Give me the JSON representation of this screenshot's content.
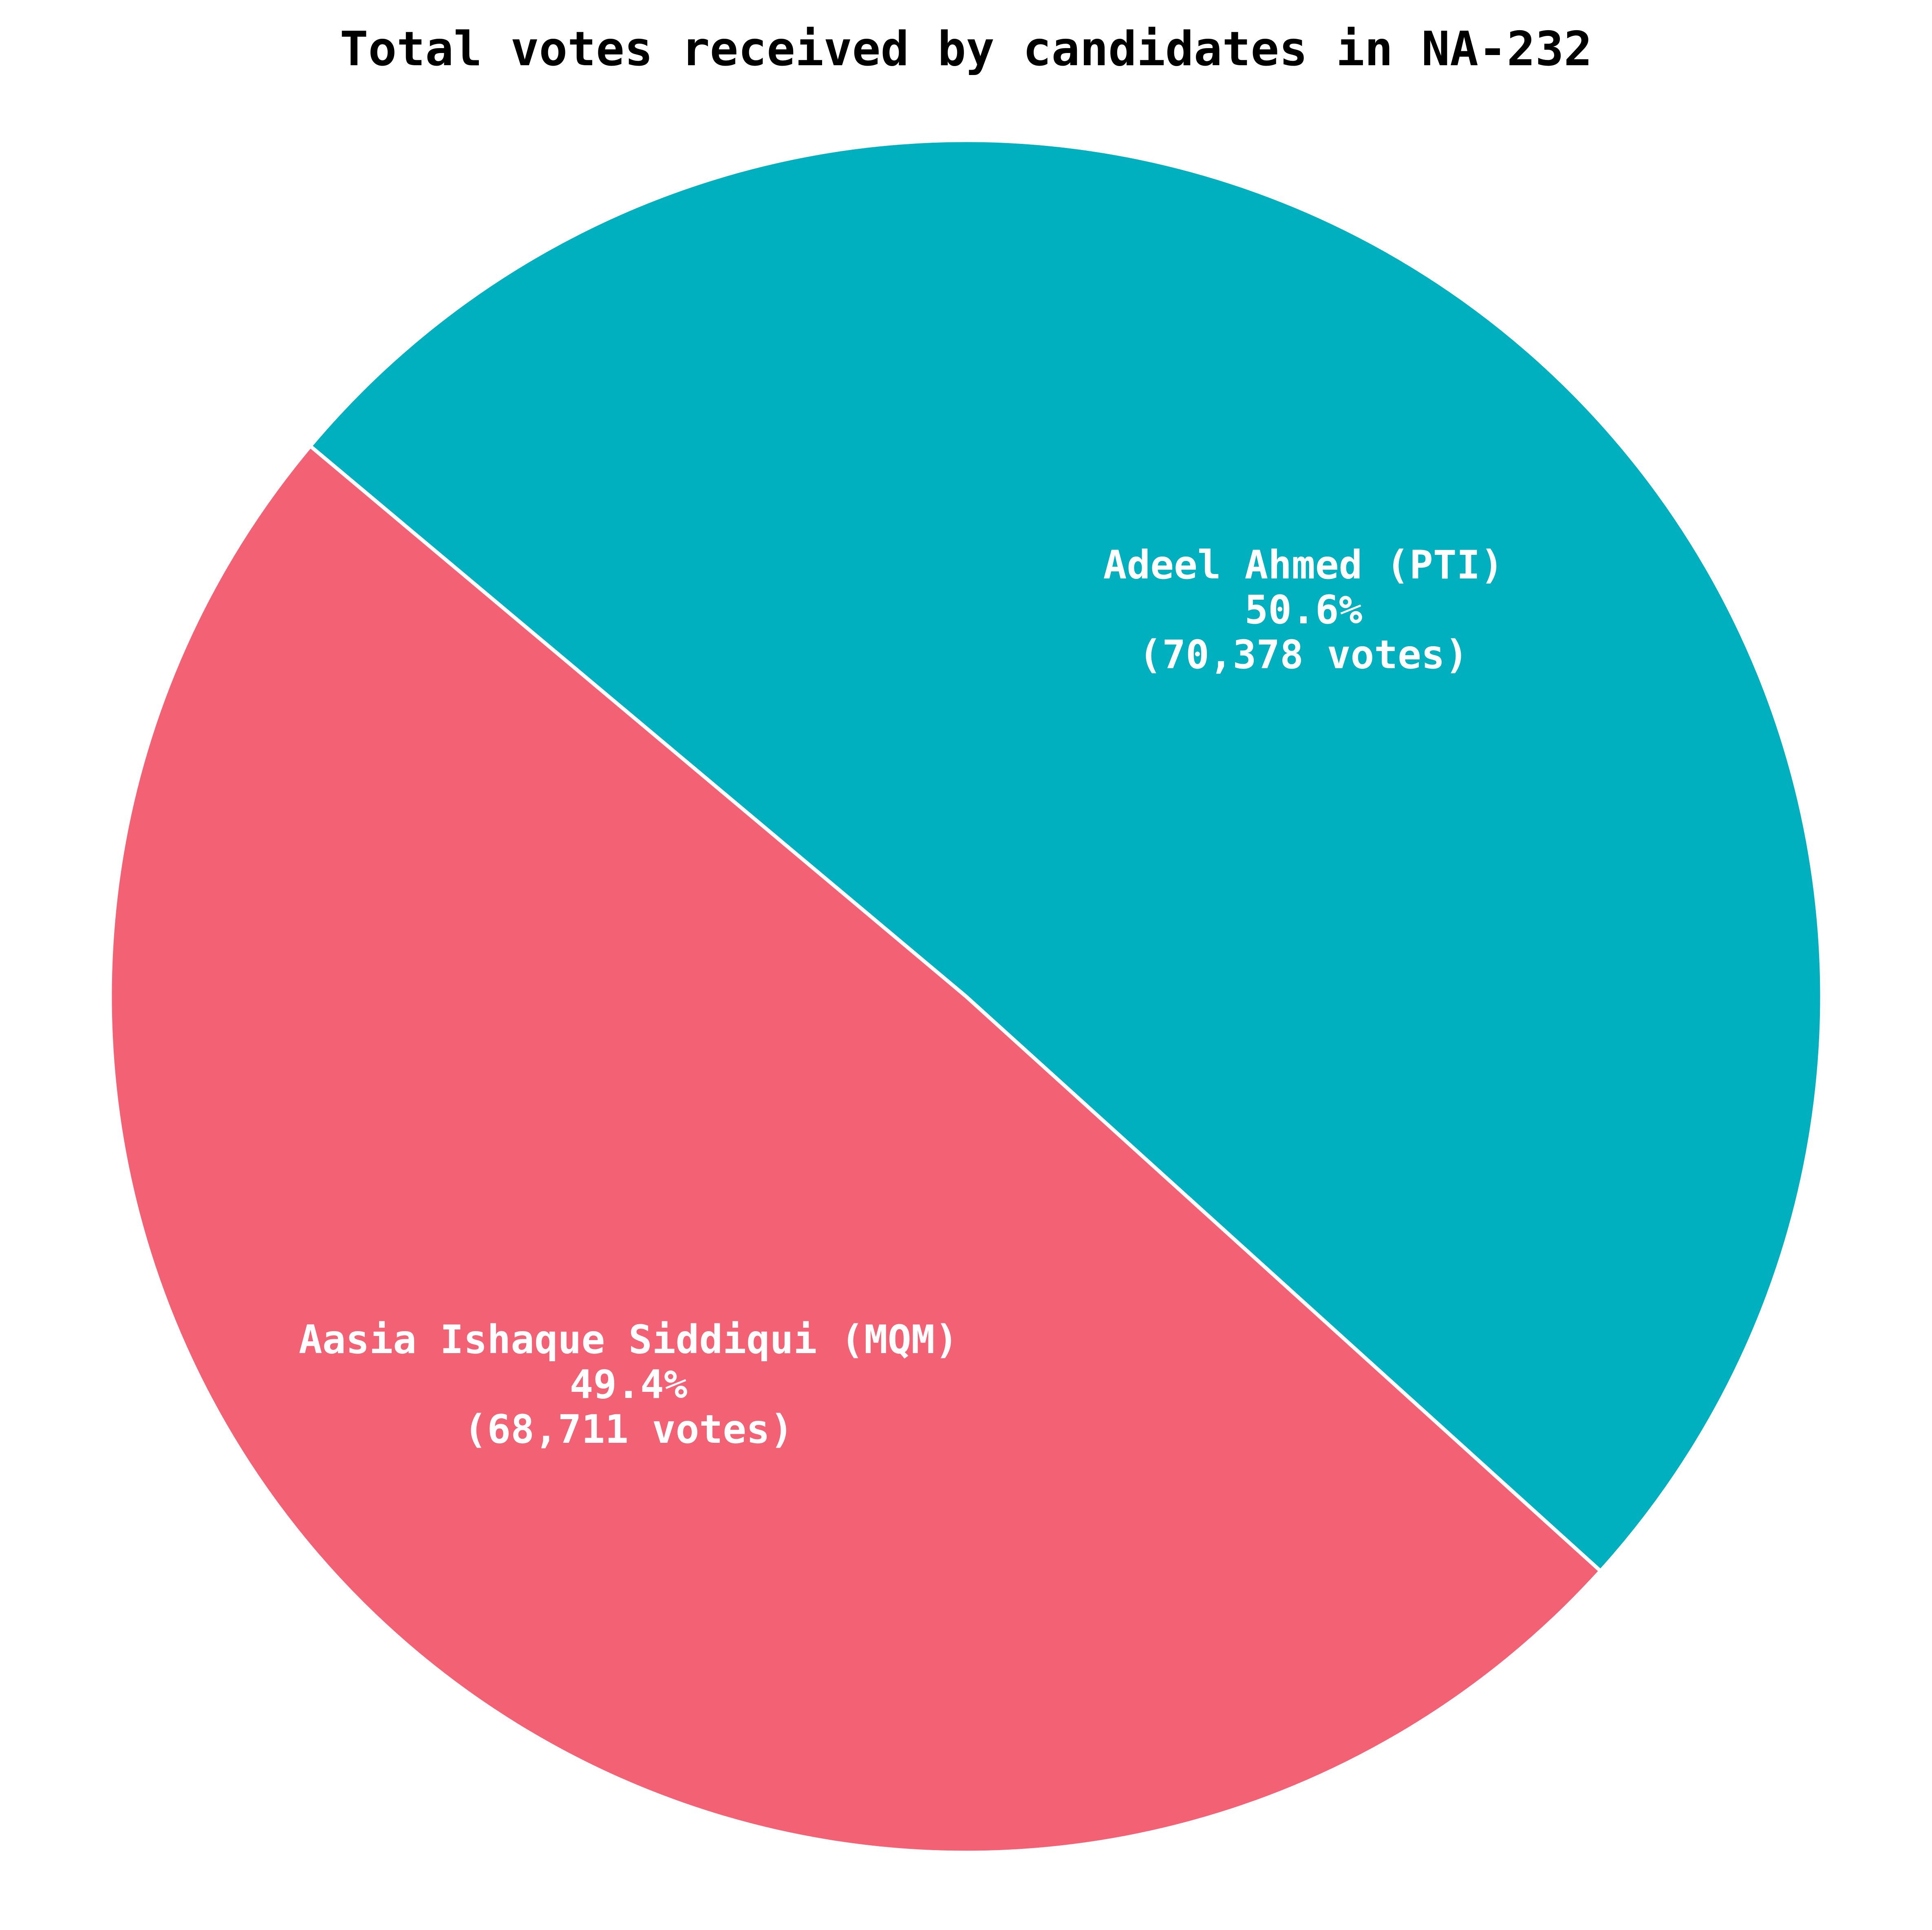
{
  "chart_data": {
    "type": "pie",
    "title": "Total votes received by candidates in NA-232",
    "slices": [
      {
        "name": "Adeel Ahmed (PTI)",
        "value": 70378,
        "percent_label": "50.6%",
        "votes_label": "(70,378 votes)",
        "color": "#00b0bf"
      },
      {
        "name": "Aasia Ishaque Siddiqui (MQM)",
        "value": 68711,
        "percent_label": "49.4%",
        "votes_label": "(68,711 votes)",
        "color": "#f36175"
      }
    ],
    "start_angle_deg": 140,
    "direction": "clockwise",
    "edge_color": "#ffffff",
    "legend": "none"
  }
}
